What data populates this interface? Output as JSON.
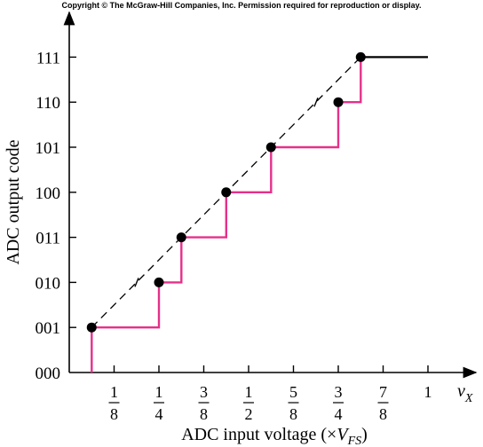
{
  "copyright": "Copyright © The McGraw-Hill Companies, Inc. Permission required for reproduction or display.",
  "colors": {
    "staircase": "#e5308a",
    "ideal": "#000000",
    "axis": "#000000",
    "points": "#000000"
  },
  "chart_data": {
    "type": "line",
    "xlabel": "ADC input voltage (×V_FS)",
    "xlabel_prefix": "ADC input voltage (×",
    "xlabel_var": "V",
    "xlabel_sub": "FS",
    "xlabel_suffix": ")",
    "ylabel": "ADC output code",
    "x_axis_var": "v",
    "x_axis_sub": "X",
    "xlim": [
      0,
      1.06
    ],
    "ylim": [
      0,
      7
    ],
    "grid": false,
    "x_ticks": [
      {
        "value": 0.125,
        "num": "1",
        "den": "8"
      },
      {
        "value": 0.25,
        "num": "1",
        "den": "4"
      },
      {
        "value": 0.375,
        "num": "3",
        "den": "8"
      },
      {
        "value": 0.5,
        "num": "1",
        "den": "2"
      },
      {
        "value": 0.625,
        "num": "5",
        "den": "8"
      },
      {
        "value": 0.75,
        "num": "3",
        "den": "4"
      },
      {
        "value": 0.875,
        "num": "7",
        "den": "8"
      },
      {
        "value": 1.0,
        "num": "1",
        "den": ""
      }
    ],
    "y_ticks": [
      "000",
      "001",
      "010",
      "011",
      "100",
      "101",
      "110",
      "111"
    ],
    "ideal_line": {
      "x": [
        0.0625,
        0.8125
      ],
      "y": [
        1,
        7
      ]
    },
    "points": [
      {
        "x": 0.0625,
        "y": 1
      },
      {
        "x": 0.25,
        "y": 2
      },
      {
        "x": 0.3125,
        "y": 3
      },
      {
        "x": 0.4375,
        "y": 4
      },
      {
        "x": 0.5625,
        "y": 5
      },
      {
        "x": 0.75,
        "y": 6
      },
      {
        "x": 0.8125,
        "y": 7
      }
    ],
    "ideal_marks": [
      {
        "x": 0.188,
        "y": 2
      },
      {
        "x": 0.688,
        "y": 6
      }
    ],
    "staircase": [
      [
        0.0625,
        0
      ],
      [
        0.0625,
        1
      ],
      [
        0.25,
        1
      ],
      [
        0.25,
        2
      ],
      [
        0.3125,
        2
      ],
      [
        0.3125,
        3
      ],
      [
        0.4375,
        3
      ],
      [
        0.4375,
        4
      ],
      [
        0.5625,
        4
      ],
      [
        0.5625,
        5
      ],
      [
        0.75,
        5
      ],
      [
        0.75,
        6
      ],
      [
        0.8125,
        6
      ],
      [
        0.8125,
        7
      ]
    ],
    "saturation": [
      [
        0.8125,
        7
      ],
      [
        1.0,
        7
      ]
    ]
  }
}
